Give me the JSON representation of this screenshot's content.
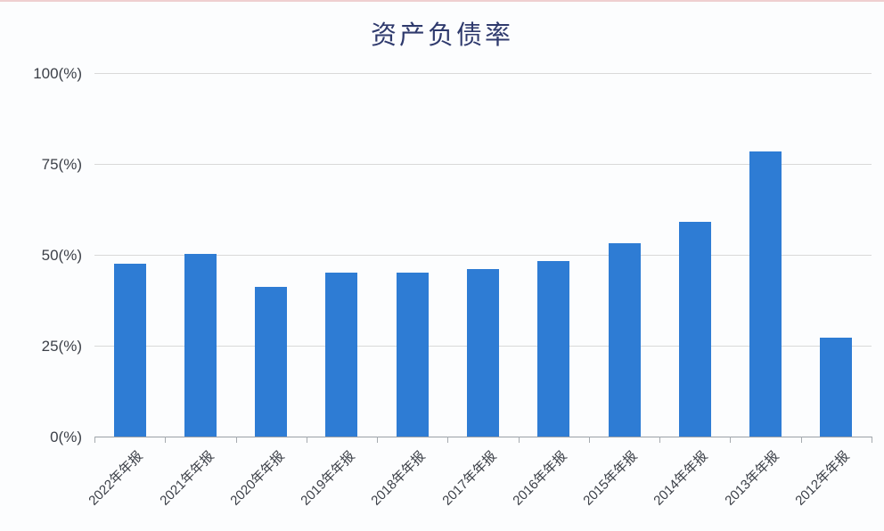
{
  "page": {
    "title": "资产负债率"
  },
  "chart_data": {
    "type": "bar",
    "title": "资产负债率",
    "categories": [
      "2022年年报",
      "2021年年报",
      "2020年年报",
      "2019年年报",
      "2018年年报",
      "2017年年报",
      "2016年年报",
      "2015年年报",
      "2014年年报",
      "2013年年报",
      "2012年年报"
    ],
    "values": [
      47.6,
      50.3,
      41.2,
      45.2,
      45.1,
      46.1,
      48.3,
      53.2,
      59.0,
      78.4,
      27.2
    ],
    "xlabel": "",
    "ylabel": "",
    "ylim": [
      0,
      100
    ],
    "y_tick_step": 25,
    "y_tick_labels": [
      "0(%)",
      "25(%)",
      "50(%)",
      "75(%)",
      "100(%)"
    ],
    "grid": true,
    "legend_position": "none",
    "colors": {
      "bar": "#2e7cd4",
      "title": "#2f3a6d",
      "axis_text": "#3c4048",
      "gridline": "#d9d9d9",
      "axis_line": "#9aa0a6",
      "tick": "#a6abb0",
      "background": "#fcfdfe",
      "top_line": "#e4a9a9"
    }
  }
}
